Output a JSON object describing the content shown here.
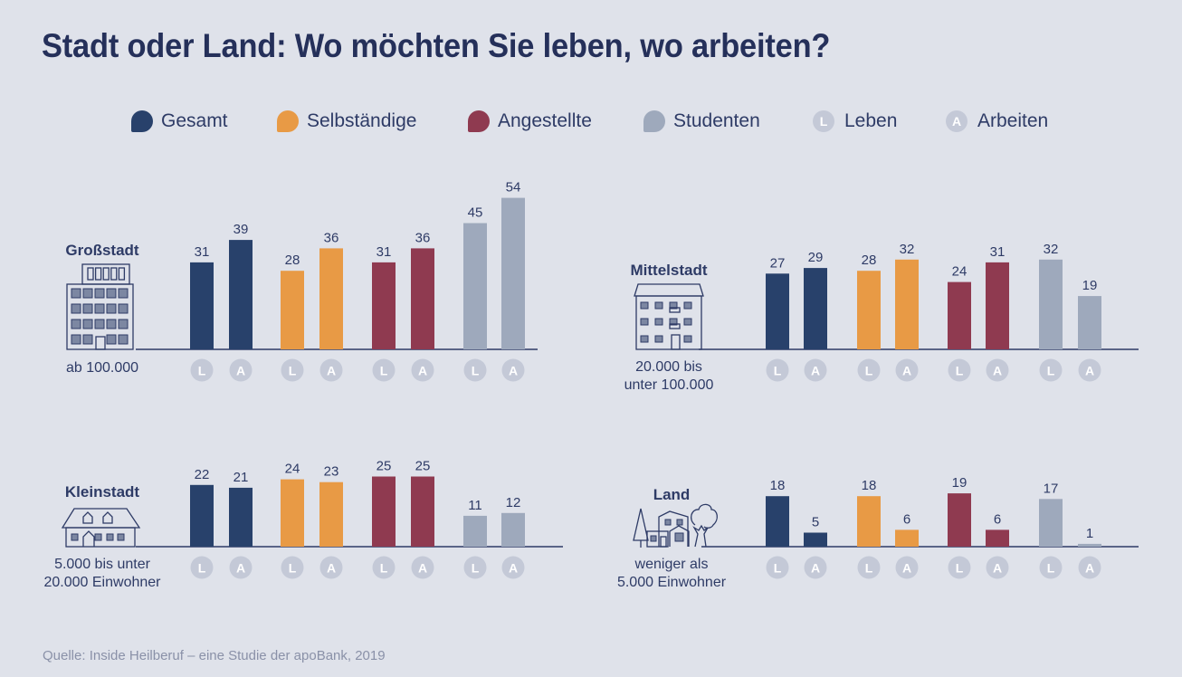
{
  "title": "Stadt oder Land: Wo möchten Sie leben, wo arbeiten?",
  "legend": {
    "groups": [
      {
        "label": "Gesamt",
        "color": "#28416b"
      },
      {
        "label": "Selbständige",
        "color": "#e89a45"
      },
      {
        "label": "Angestellte",
        "color": "#8f3a50"
      },
      {
        "label": "Studenten",
        "color": "#9ea9bc"
      }
    ],
    "markers": [
      {
        "letter": "L",
        "label": "Leben"
      },
      {
        "letter": "A",
        "label": "Arbeiten"
      }
    ]
  },
  "source": "Quelle: Inside Heilberuf – eine Studie der apoBank, 2019",
  "chart_data": {
    "type": "bar",
    "title": "Stadt oder Land: Wo möchten Sie leben, wo arbeiten?",
    "series_groups": [
      "Gesamt",
      "Selbständige",
      "Angestellte",
      "Studenten"
    ],
    "bar_labels": [
      "L",
      "A"
    ],
    "bar_label_meaning": {
      "L": "Leben",
      "A": "Arbeiten"
    },
    "ylim": [
      0,
      60
    ],
    "grid": false,
    "legend": "top",
    "panels": [
      {
        "name": "Großstadt",
        "subtitle": [
          "ab 100.000"
        ],
        "icon": "skyscraper-icon",
        "values": {
          "Gesamt": [
            31,
            39
          ],
          "Selbständige": [
            28,
            36
          ],
          "Angestellte": [
            31,
            36
          ],
          "Studenten": [
            45,
            54
          ]
        }
      },
      {
        "name": "Mittelstadt",
        "subtitle": [
          "20.000 bis",
          "unter 100.000"
        ],
        "icon": "apartment-building-icon",
        "values": {
          "Gesamt": [
            27,
            29
          ],
          "Selbständige": [
            28,
            32
          ],
          "Angestellte": [
            24,
            31
          ],
          "Studenten": [
            32,
            19
          ]
        }
      },
      {
        "name": "Kleinstadt",
        "subtitle": [
          "5.000 bis unter",
          "20.000 Einwohner"
        ],
        "icon": "house-icon",
        "values": {
          "Gesamt": [
            22,
            21
          ],
          "Selbständige": [
            24,
            23
          ],
          "Angestellte": [
            25,
            25
          ],
          "Studenten": [
            11,
            12
          ]
        }
      },
      {
        "name": "Land",
        "subtitle": [
          "weniger als",
          "5.000  Einwohner"
        ],
        "icon": "countryside-house-trees-icon",
        "values": {
          "Gesamt": [
            18,
            5
          ],
          "Selbständige": [
            18,
            6
          ],
          "Angestellte": [
            19,
            6
          ],
          "Studenten": [
            17,
            1
          ]
        }
      }
    ]
  }
}
